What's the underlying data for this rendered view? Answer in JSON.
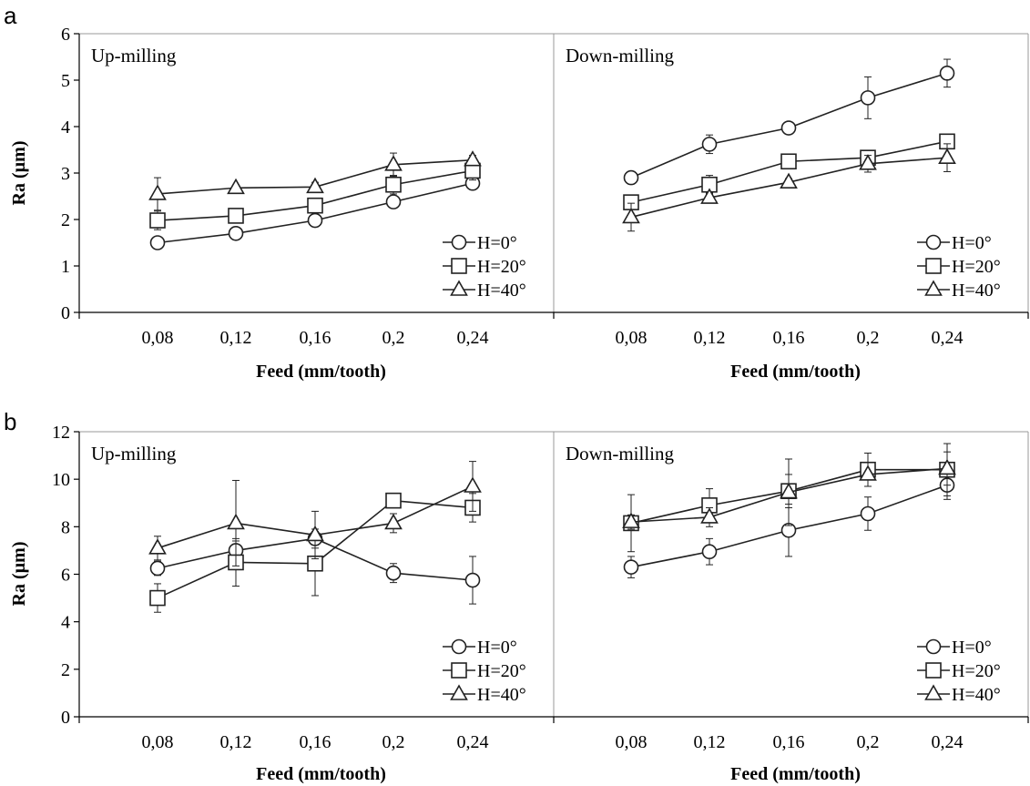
{
  "chart_data": [
    {
      "panel_letter": "a",
      "type": "line",
      "ylabel": "Ra (µm)",
      "ylim": [
        0,
        6
      ],
      "yticks": [
        "0",
        "1",
        "2",
        "3",
        "4",
        "5",
        "6"
      ],
      "xlabel": "Feed (mm/tooth)",
      "categories": [
        "0,08",
        "0,12",
        "0,16",
        "0,2",
        "0,24"
      ],
      "grid": false,
      "legend_position": "bottom-right",
      "subplots": [
        {
          "title": "Up-milling",
          "series": [
            {
              "name": "H=0°",
              "marker": "circle",
              "values": [
                1.5,
                1.7,
                1.98,
                2.38,
                2.78
              ],
              "errors": [
                0.1,
                0.1,
                0.1,
                0.12,
                0.1
              ]
            },
            {
              "name": "H=20°",
              "marker": "square",
              "values": [
                1.98,
                2.08,
                2.3,
                2.75,
                3.05
              ],
              "errors": [
                0.2,
                0.1,
                0.15,
                0.2,
                0.2
              ]
            },
            {
              "name": "H=40°",
              "marker": "triangle",
              "values": [
                2.55,
                2.68,
                2.7,
                3.18,
                3.28
              ],
              "errors": [
                0.35,
                0.05,
                0.1,
                0.25,
                0.1
              ]
            }
          ]
        },
        {
          "title": "Down-milling",
          "series": [
            {
              "name": "H=0°",
              "marker": "circle",
              "values": [
                2.9,
                3.62,
                3.97,
                4.62,
                5.15
              ],
              "errors": [
                0.1,
                0.2,
                0.1,
                0.45,
                0.3
              ]
            },
            {
              "name": "H=20°",
              "marker": "square",
              "values": [
                2.37,
                2.75,
                3.25,
                3.33,
                3.68
              ],
              "errors": [
                0.1,
                0.2,
                0.12,
                0.12,
                0.1
              ]
            },
            {
              "name": "H=40°",
              "marker": "triangle",
              "values": [
                2.05,
                2.47,
                2.8,
                3.2,
                3.33
              ],
              "errors": [
                0.3,
                0.1,
                0.08,
                0.18,
                0.3
              ]
            }
          ]
        }
      ]
    },
    {
      "panel_letter": "b",
      "type": "line",
      "ylabel": "Ra (µm)",
      "ylim": [
        0,
        12
      ],
      "yticks": [
        "0",
        "2",
        "4",
        "6",
        "8",
        "10",
        "12"
      ],
      "xlabel": "Feed (mm/tooth)",
      "categories": [
        "0,08",
        "0,12",
        "0,16",
        "0,2",
        "0,24"
      ],
      "grid": false,
      "legend_position": "bottom-right",
      "subplots": [
        {
          "title": "Up-milling",
          "series": [
            {
              "name": "H=0°",
              "marker": "circle",
              "values": [
                6.25,
                7.0,
                7.5,
                6.05,
                5.75
              ],
              "errors": [
                0.3,
                0.4,
                0.4,
                0.4,
                1.0
              ]
            },
            {
              "name": "H=20°",
              "marker": "square",
              "values": [
                5.0,
                6.5,
                6.45,
                9.1,
                8.8
              ],
              "errors": [
                0.6,
                1.0,
                1.35,
                0.3,
                0.6
              ]
            },
            {
              "name": "H=40°",
              "marker": "triangle",
              "values": [
                7.1,
                8.15,
                7.65,
                8.15,
                9.7
              ],
              "errors": [
                0.5,
                1.8,
                1.0,
                0.4,
                1.05
              ]
            }
          ]
        },
        {
          "title": "Down-milling",
          "series": [
            {
              "name": "H=0°",
              "marker": "circle",
              "values": [
                6.3,
                6.95,
                7.85,
                8.55,
                9.75
              ],
              "errors": [
                0.45,
                0.55,
                1.1,
                0.7,
                0.6
              ]
            },
            {
              "name": "H=20°",
              "marker": "square",
              "values": [
                8.15,
                8.9,
                9.5,
                10.4,
                10.4
              ],
              "errors": [
                1.2,
                0.7,
                0.7,
                0.7,
                1.1
              ]
            },
            {
              "name": "H=40°",
              "marker": "triangle",
              "values": [
                8.2,
                8.4,
                9.45,
                10.2,
                10.45
              ],
              "errors": [
                0.3,
                0.4,
                1.4,
                0.5,
                0.7
              ]
            }
          ]
        }
      ]
    }
  ]
}
